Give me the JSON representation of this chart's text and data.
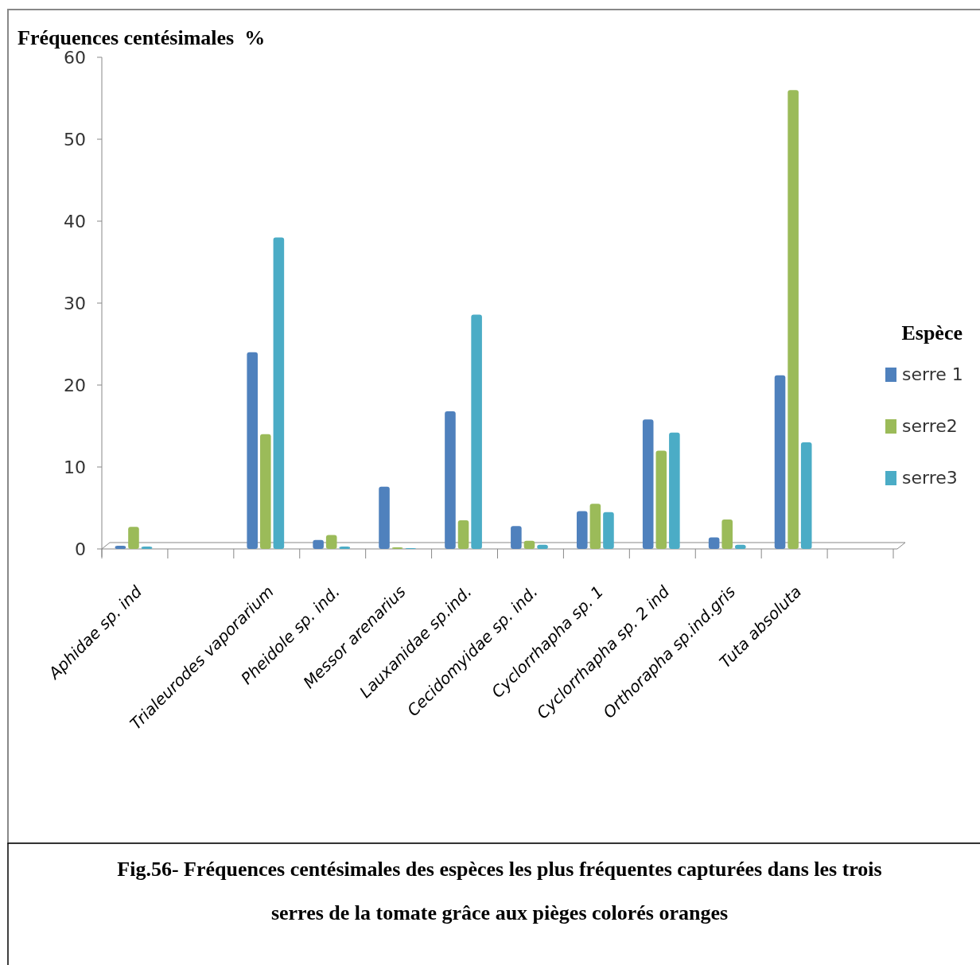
{
  "chart_data": {
    "type": "bar",
    "ylabel": "Fréquences centésimales  %",
    "legend_title": "Espèce",
    "legend": "right",
    "grid": false,
    "categories": [
      "Aphidae sp. ind",
      null,
      "Trialeurodes vaporarium",
      "Pheidole sp. ind.",
      "Messor arenarius",
      "Lauxanidae sp.ind.",
      "Cecidomyidae sp. ind.",
      "Cyclorrhapha sp. 1",
      "Cyclorrhapha sp. 2 ind",
      "Orthorapha sp.ind.gris",
      "Tuta absoluta",
      null
    ],
    "series": [
      {
        "name": "serre 1",
        "color": "#4f81bd",
        "values": [
          0.4,
          null,
          24,
          1.1,
          7.6,
          16.8,
          2.8,
          4.6,
          15.8,
          1.4,
          21.2,
          null
        ]
      },
      {
        "name": "serre2",
        "color": "#9bbb59",
        "values": [
          2.7,
          null,
          14,
          1.7,
          0.2,
          3.5,
          1,
          5.5,
          12,
          3.6,
          56,
          null
        ]
      },
      {
        "name": "serre3",
        "color": "#4bacc6",
        "values": [
          0.3,
          null,
          38,
          0.3,
          0.1,
          28.6,
          0.5,
          4.5,
          14.2,
          0.5,
          13,
          null
        ]
      }
    ],
    "ylim": [
      0,
      60
    ],
    "yticks": [
      0,
      10,
      20,
      30,
      40,
      50,
      60
    ],
    "annotations": [
      "Fig.56- Fréquences centésimales des espèces les plus fréquentes capturées dans les trois serres de la tomate grâce aux pièges colorés oranges"
    ]
  }
}
